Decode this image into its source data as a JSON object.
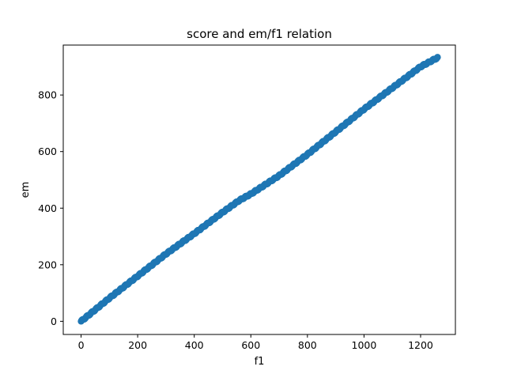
{
  "chart_data": {
    "type": "scatter",
    "title": "score and em/f1 relation",
    "xlabel": "f1",
    "ylabel": "em",
    "xlim": [
      -63,
      1323
    ],
    "ylim": [
      -46.5,
      976.5
    ],
    "xticks": [
      0,
      200,
      400,
      600,
      800,
      1000,
      1200
    ],
    "yticks": [
      0,
      200,
      400,
      600,
      800
    ],
    "grid": false,
    "marker_color": "#1f77b4",
    "trend_anchors": [
      [
        0,
        0
      ],
      [
        100,
        82
      ],
      [
        200,
        160
      ],
      [
        300,
        238
      ],
      [
        400,
        310
      ],
      [
        500,
        385
      ],
      [
        560,
        428
      ],
      [
        600,
        450
      ],
      [
        700,
        515
      ],
      [
        800,
        590
      ],
      [
        900,
        670
      ],
      [
        1000,
        750
      ],
      [
        1100,
        825
      ],
      [
        1200,
        900
      ],
      [
        1260,
        932
      ]
    ],
    "point_count": 1260
  }
}
